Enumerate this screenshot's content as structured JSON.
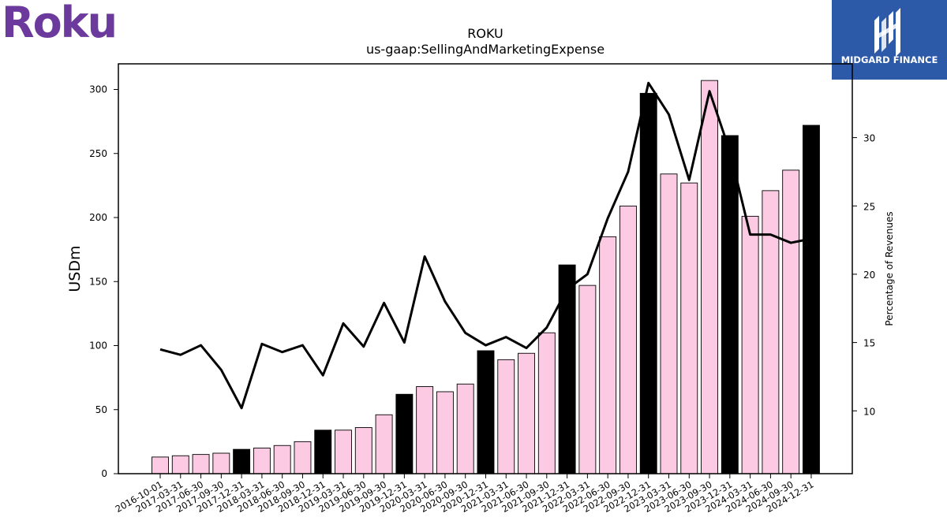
{
  "header": {
    "brand_logo_text": "Roku",
    "partner_logo_text": "MIDGARD FINANCE"
  },
  "colors": {
    "bar_quarter": "#fccbe3",
    "bar_year_end": "#000000",
    "line": "#000000",
    "roku_purple": "#6c3a9c",
    "midgard_blue": "#2d5aa8"
  },
  "chart_data": {
    "type": "bar",
    "title": "ROKU",
    "subtitle": "us-gaap:SellingAndMarketingExpense",
    "ylabel": "USDm",
    "y2label": "Percentage of Revenues",
    "ylim": [
      0,
      320
    ],
    "y2lim": [
      5.4,
      35.4
    ],
    "yticks": [
      0,
      50,
      100,
      150,
      200,
      250,
      300
    ],
    "y2ticks": [
      10,
      15,
      20,
      25,
      30
    ],
    "categories": [
      "2016-10-01",
      "2017-03-31",
      "2017-06-30",
      "2017-09-30",
      "2017-12-31",
      "2018-03-31",
      "2018-06-30",
      "2018-09-30",
      "2018-12-31",
      "2019-03-31",
      "2019-06-30",
      "2019-09-30",
      "2019-12-31",
      "2020-03-31",
      "2020-06-30",
      "2020-09-30",
      "2020-12-31",
      "2021-03-31",
      "2021-06-30",
      "2021-09-30",
      "2021-12-31",
      "2022-03-31",
      "2022-06-30",
      "2022-09-30",
      "2022-12-31",
      "2023-03-31",
      "2023-06-30",
      "2023-09-30",
      "2023-12-31",
      "2024-03-31",
      "2024-06-30",
      "2024-09-30",
      "2024-12-31"
    ],
    "series": [
      {
        "kind": "bar",
        "values": [
          13,
          14,
          15,
          16,
          19,
          20,
          22,
          25,
          34,
          34,
          36,
          46,
          62,
          68,
          64,
          70,
          96,
          89,
          94,
          110,
          163,
          147,
          185,
          209,
          297,
          234,
          227,
          307,
          264,
          201,
          221,
          237,
          272
        ],
        "year_end": [
          false,
          false,
          false,
          false,
          true,
          false,
          false,
          false,
          true,
          false,
          false,
          false,
          true,
          false,
          false,
          false,
          true,
          false,
          false,
          false,
          true,
          false,
          false,
          false,
          true,
          false,
          false,
          false,
          true,
          false,
          false,
          false,
          true
        ]
      },
      {
        "kind": "line",
        "axis": "right",
        "values": [
          14.5,
          14.1,
          14.8,
          13.0,
          10.2,
          14.9,
          14.3,
          14.8,
          12.6,
          16.4,
          14.7,
          17.9,
          15.0,
          21.3,
          18.0,
          15.7,
          14.8,
          15.4,
          14.6,
          16.1,
          18.9,
          20.0,
          24.1,
          27.5,
          34.0,
          31.7,
          26.9,
          33.4,
          29.0,
          22.9,
          22.9,
          22.3,
          22.6
        ]
      }
    ]
  }
}
